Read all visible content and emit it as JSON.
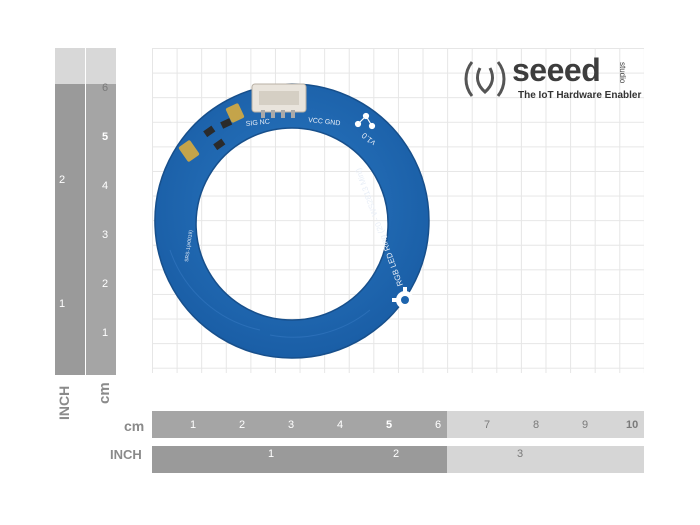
{
  "logo": {
    "brand": "seeed",
    "studio": "studio",
    "tagline": "The IoT Hardware Enabler"
  },
  "board": {
    "connector_labels": [
      "SIG NC",
      "VCC GND"
    ],
    "name_line1": "RGB LED Ring (20 - WS2813 Mini)",
    "name_line2": "v1.0",
    "small_text": "SRS-1(#0019)"
  },
  "rulers": {
    "cm_unit": "cm",
    "inch_unit": "INCH",
    "cm_ticks": [
      "1",
      "2",
      "3",
      "4",
      "5",
      "6",
      "7",
      "8",
      "9",
      "10"
    ],
    "inch_ticks": [
      "1",
      "2",
      "3"
    ],
    "v_cm_ticks": [
      "6",
      "5",
      "4",
      "3",
      "2",
      "1"
    ],
    "v_inch_ticks": [
      "2",
      "1"
    ]
  },
  "colors": {
    "pcb": "#1d64ad",
    "pcb_edge": "#174f8b"
  }
}
